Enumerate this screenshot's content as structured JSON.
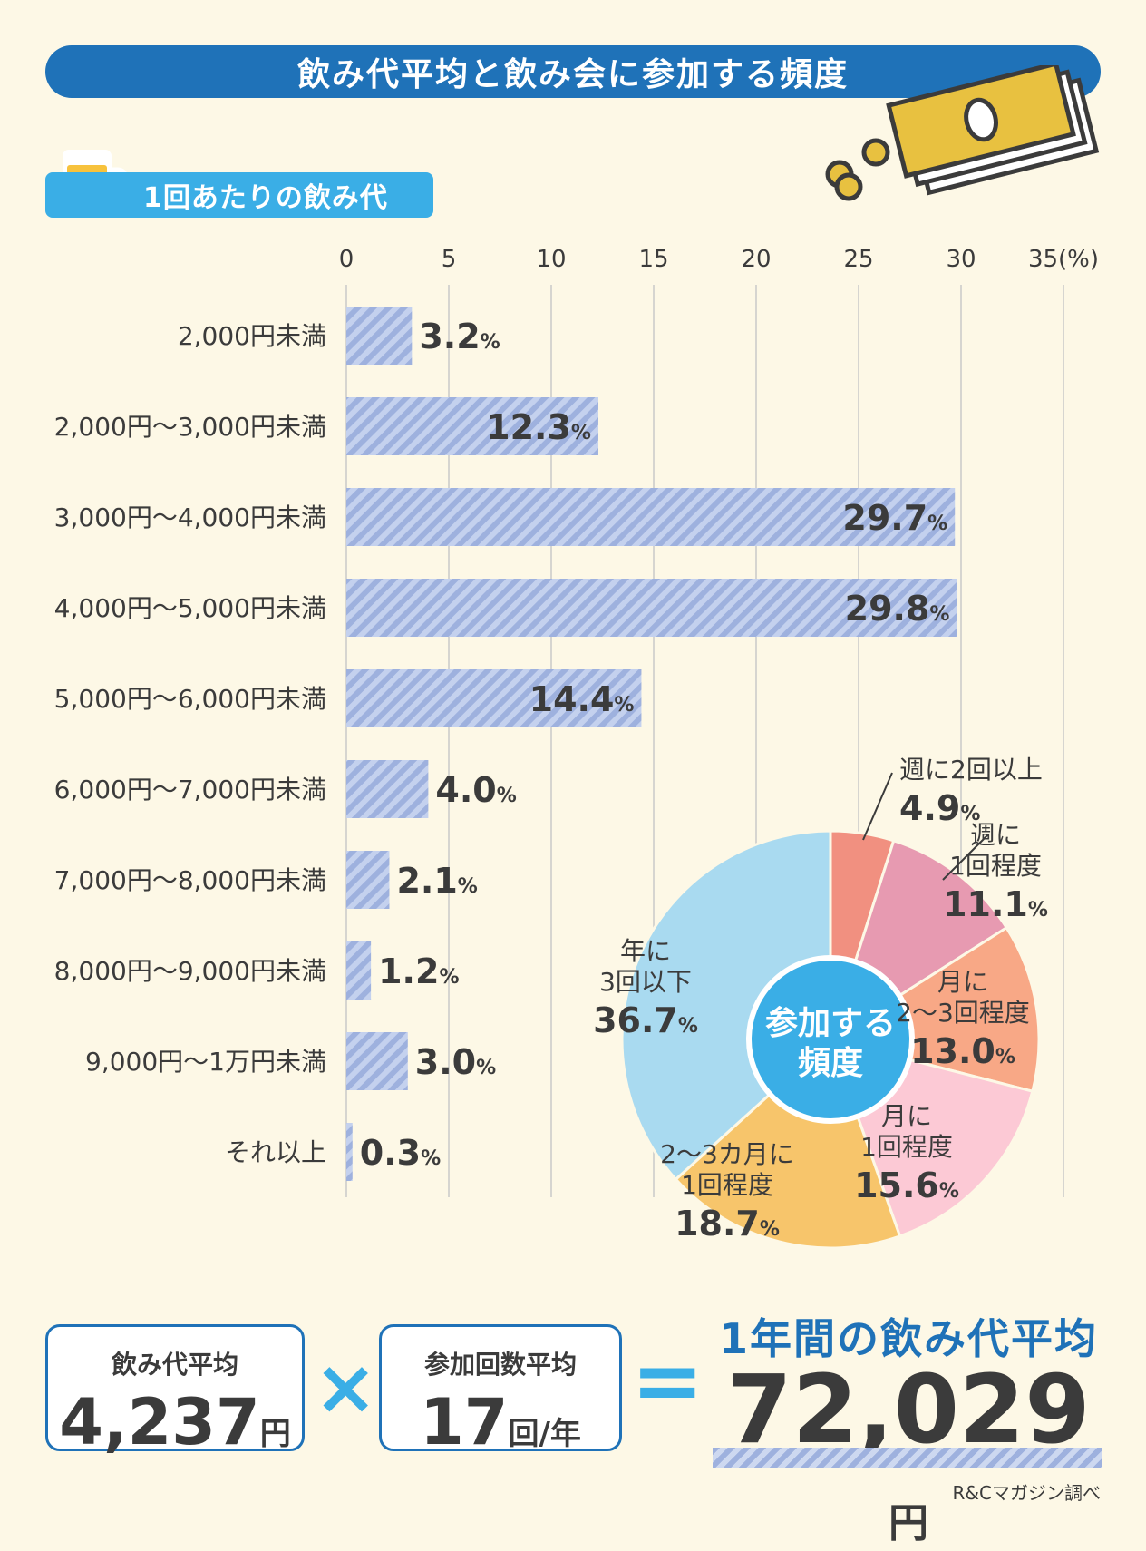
{
  "header": {
    "title": "飲み代平均と飲み会に参加する頻度"
  },
  "section": {
    "label": "1回あたりの飲み代"
  },
  "chart_data": [
    {
      "type": "bar",
      "orientation": "horizontal",
      "categories": [
        "2,000円未満",
        "2,000円～3,000円未満",
        "3,000円～4,000円未満",
        "4,000円～5,000円未満",
        "5,000円～6,000円未満",
        "6,000円～7,000円未満",
        "7,000円～8,000円未満",
        "8,000円～9,000円未満",
        "9,000円～1万円未満",
        "それ以上"
      ],
      "values": [
        3.2,
        12.3,
        29.7,
        29.8,
        14.4,
        4.0,
        2.1,
        1.2,
        3.0,
        0.3
      ],
      "value_labels": [
        "3.2",
        "12.3",
        "29.7",
        "29.8",
        "14.4",
        "4.0",
        "2.1",
        "1.2",
        "3.0",
        "0.3"
      ],
      "value_unit": "%",
      "xlim": [
        0,
        35
      ],
      "x_ticks": [
        "0",
        "5",
        "10",
        "15",
        "20",
        "25",
        "30",
        "35(%)"
      ],
      "grid": true
    },
    {
      "type": "pie",
      "donut": true,
      "center_label": [
        "参加する",
        "頻度"
      ],
      "slices": [
        {
          "label": [
            "週に2回以上"
          ],
          "value": 4.9,
          "value_label": "4.9",
          "color": "#f19080"
        },
        {
          "label": [
            "週に",
            "1回程度"
          ],
          "value": 11.1,
          "value_label": "11.1",
          "color": "#e79ab1"
        },
        {
          "label": [
            "月に",
            "2～3回程度"
          ],
          "value": 13.0,
          "value_label": "13.0",
          "color": "#f8a886"
        },
        {
          "label": [
            "月に",
            "1回程度"
          ],
          "value": 15.6,
          "value_label": "15.6",
          "color": "#fcc9d5"
        },
        {
          "label": [
            "2～3カ月に",
            "1回程度"
          ],
          "value": 18.7,
          "value_label": "18.7",
          "color": "#f7c56b"
        },
        {
          "label": [
            "年に",
            "3回以下"
          ],
          "value": 36.7,
          "value_label": "36.7",
          "color": "#a9daf0"
        }
      ],
      "value_unit": "%"
    }
  ],
  "totals": {
    "avg_cost": {
      "label": "飲み代平均",
      "value": "4,237",
      "unit": "円"
    },
    "times_sign": "×",
    "avg_count": {
      "label": "参加回数平均",
      "value": "17",
      "unit": "回/年"
    },
    "equals_sign": "=",
    "result": {
      "label": "1年間の飲み代平均",
      "value": "72,029",
      "unit": "円"
    }
  },
  "source": "R&Cマガジン調べ",
  "colors": {
    "title_bg": "#1f72b8",
    "tag_bg": "#3aaee6",
    "bar_stripe_a": "#9eb1de",
    "bar_stripe_b": "#c4d1ee",
    "donut_center": "#3aaee6",
    "page_bg": "#fdf8e6"
  },
  "icons": [
    "beer-mug-icon",
    "money-icon"
  ]
}
